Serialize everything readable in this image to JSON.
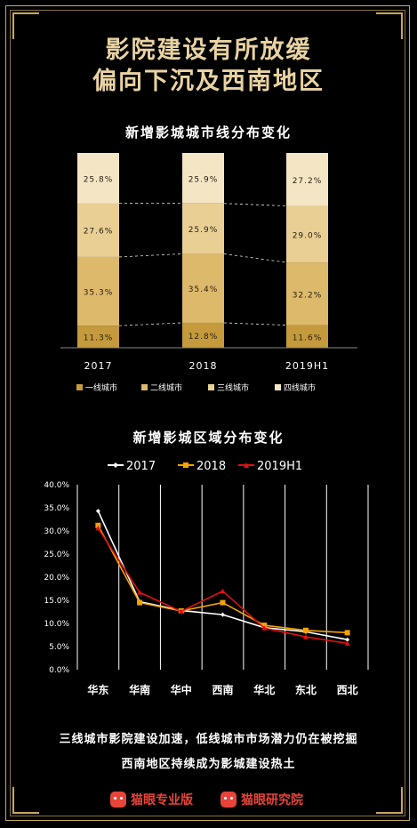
{
  "header": {
    "line1": "影院建设有所放缓",
    "line2": "偏向下沉及西南地区"
  },
  "colors": {
    "gold": "#e9d3a3",
    "tier1": "#c49a3c",
    "tier2": "#dcb96b",
    "tier3": "#e9cf94",
    "tier4": "#f4e6c4",
    "s2017": "#ffffff",
    "s2018": "#f5a300",
    "s2019": "#e01010"
  },
  "chart_data": [
    {
      "type": "bar",
      "stacked": true,
      "title": "新增影城城市线分布变化",
      "categories": [
        "2017",
        "2018",
        "2019H1"
      ],
      "series": [
        {
          "name": "一线城市",
          "values": [
            11.3,
            12.8,
            11.6
          ],
          "labels": [
            "11.3%",
            "12.8%",
            "11.6%"
          ]
        },
        {
          "name": "二线城市",
          "values": [
            35.3,
            35.4,
            32.2
          ],
          "labels": [
            "35.3%",
            "35.4%",
            "32.2%"
          ]
        },
        {
          "name": "三线城市",
          "values": [
            27.6,
            25.9,
            29.0
          ],
          "labels": [
            "27.6%",
            "25.9%",
            "29.0%"
          ]
        },
        {
          "name": "四线城市",
          "values": [
            25.8,
            25.9,
            27.2
          ],
          "labels": [
            "25.8%",
            "25.9%",
            "27.2%"
          ]
        }
      ],
      "legend": "bottom"
    },
    {
      "type": "line",
      "title": "新增影城区域分布变化",
      "categories": [
        "华东",
        "华南",
        "华中",
        "西南",
        "华北",
        "东北",
        "西北"
      ],
      "series": [
        {
          "name": "2017",
          "values": [
            34.3,
            14.7,
            12.8,
            11.9,
            9.1,
            8.2,
            6.5
          ]
        },
        {
          "name": "2018",
          "values": [
            31.2,
            14.5,
            12.7,
            14.5,
            9.6,
            8.5,
            8.0
          ]
        },
        {
          "name": "2019H1",
          "values": [
            30.6,
            16.7,
            12.6,
            17.0,
            9.0,
            7.1,
            5.7
          ]
        }
      ],
      "yticks": [
        "40.0%",
        "35.0%",
        "30.0%",
        "25.0%",
        "20.0%",
        "15.0%",
        "10.0%",
        "5.0%",
        "0.0%"
      ],
      "ylim": [
        0,
        40
      ],
      "legend": "top",
      "grid": "vertical"
    }
  ],
  "footer": {
    "line1": "三线城市影院建设加速，低线城市市场潜力仍在被挖掘",
    "line2": "西南地区持续成为影城建设热土",
    "logo1": "猫眼专业版",
    "logo2": "猫眼研究院"
  }
}
